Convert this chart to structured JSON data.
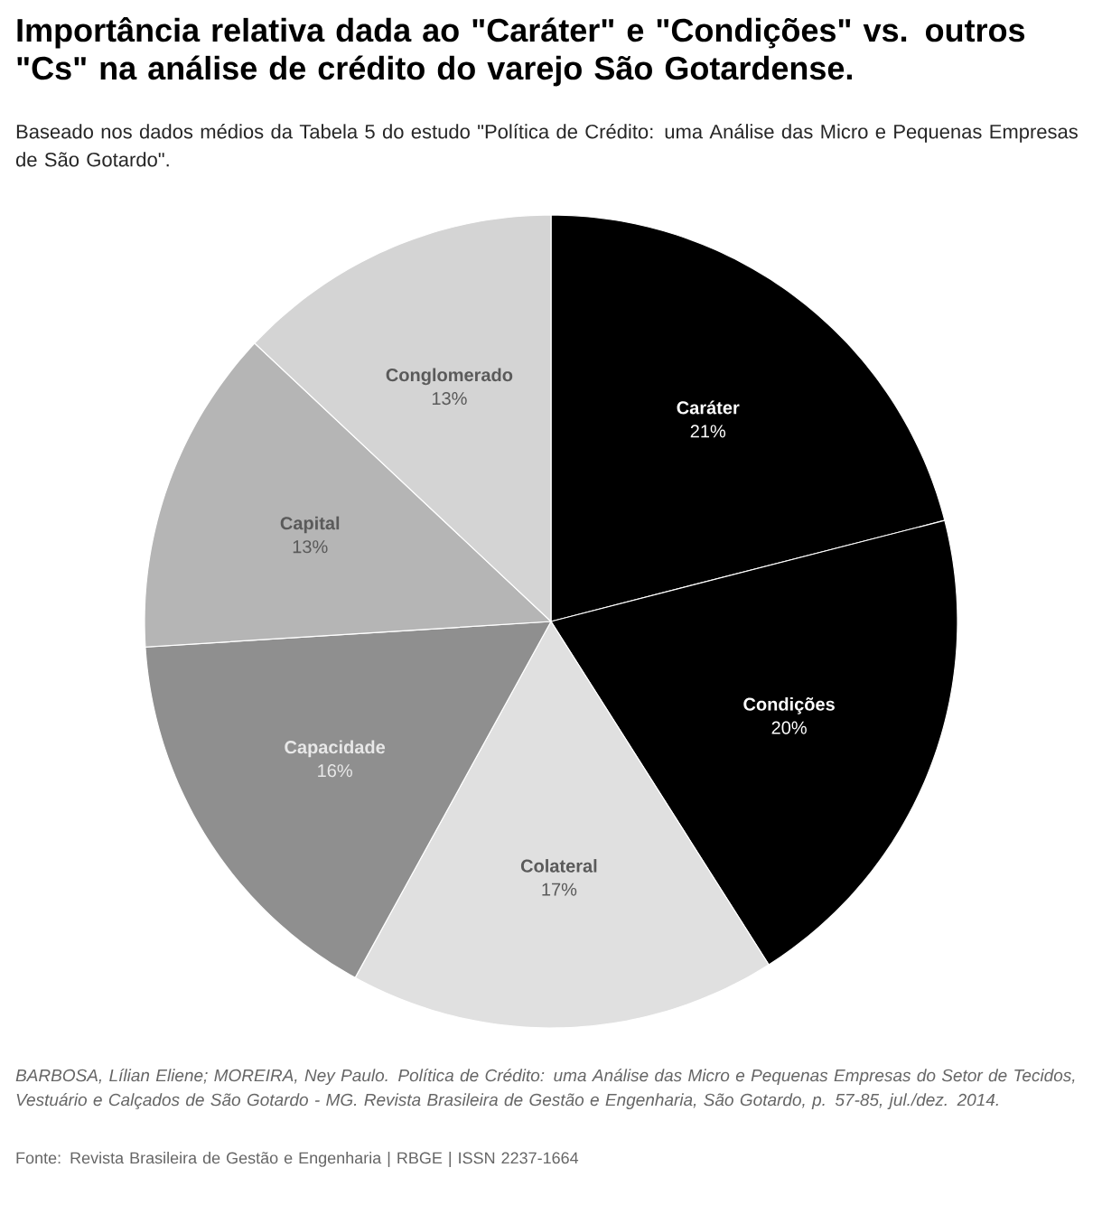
{
  "chart_data": {
    "type": "pie",
    "title": "Importância relativa dada ao \"Caráter\" e \"Condições\" vs. outros \"Cs\" na análise de crédito do varejo São Gotardense.",
    "subtitle": "Baseado nos dados médios da Tabela 5 do estudo \"Política de Crédito: uma Análise das Micro e Pequenas Empresas de São Gotardo\".",
    "categories": [
      "Caráter",
      "Condições",
      "Colateral",
      "Capacidade",
      "Capital",
      "Conglomerado"
    ],
    "values": [
      21,
      20,
      17,
      16,
      13,
      13
    ],
    "colors": [
      "#000000",
      "#000000",
      "#e0e0e0",
      "#8f8f8f",
      "#b5b5b5",
      "#d4d4d4"
    ],
    "value_labels": [
      "21%",
      "20%",
      "17%",
      "16%",
      "13%",
      "13%"
    ],
    "annotations": [
      "BARBOSA, Lílian Eliene; MOREIRA, Ney Paulo. Política de Crédito: uma Análise das Micro e Pequenas Empresas do Setor de Tecidos, Vestuário e Calçados de São Gotardo - MG. Revista Brasileira de Gestão e Engenharia, São Gotardo, p. 57-85, jul./dez. 2014.",
      "Fonte: Revista Brasileira de Gestão e Engenharia | RBGE | ISSN 2237-1664"
    ]
  }
}
